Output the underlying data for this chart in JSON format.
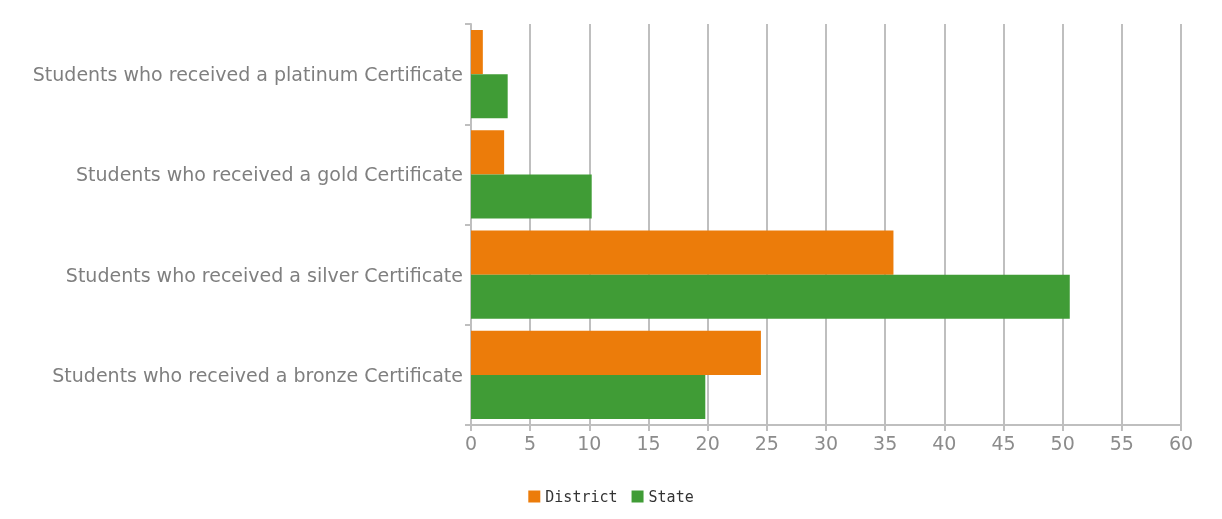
{
  "chart_data": {
    "type": "bar",
    "orientation": "horizontal",
    "categories": [
      "Students who received a platinum Certificate",
      "Students who received a gold Certificate",
      "Students who received a silver Certificate",
      "Students who received a bronze Certificate"
    ],
    "series": [
      {
        "name": "District",
        "color": "#ec7c0a",
        "values": [
          1.0,
          2.8,
          35.7,
          24.5
        ]
      },
      {
        "name": "State",
        "color": "#409c36",
        "values": [
          3.1,
          10.2,
          50.6,
          19.8
        ]
      }
    ],
    "xlim": [
      0,
      60
    ],
    "xticks": [
      0,
      5,
      10,
      15,
      20,
      25,
      30,
      35,
      40,
      45,
      50,
      55,
      60
    ],
    "grid": "x",
    "legend": "bottom"
  }
}
